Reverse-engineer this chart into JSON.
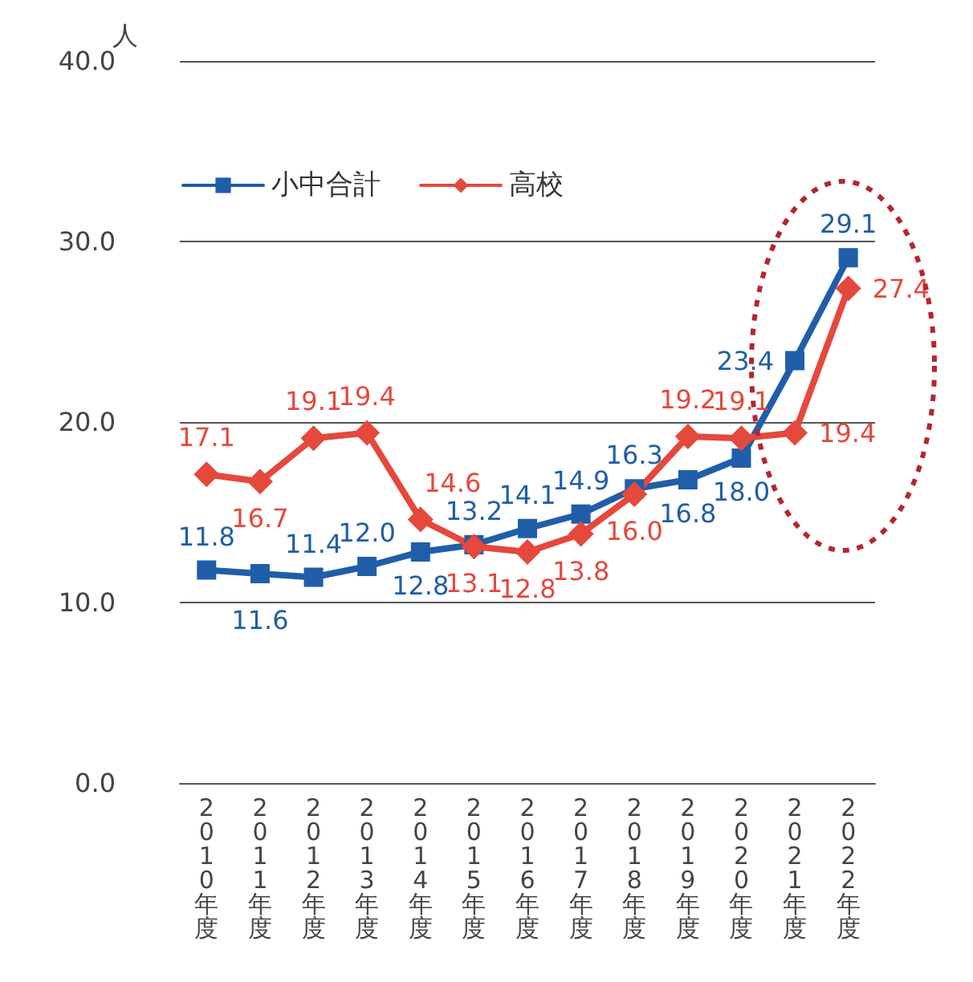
{
  "chart_data": {
    "type": "line",
    "ylabel": "人",
    "categories": [
      "2010年度",
      "2011年度",
      "2012年度",
      "2013年度",
      "2014年度",
      "2015年度",
      "2016年度",
      "2017年度",
      "2018年度",
      "2019年度",
      "2020年度",
      "2021年度",
      "2022年度"
    ],
    "series": [
      {
        "name": "小中合計",
        "color": "#1f5ea8",
        "marker": "square",
        "values": [
          11.8,
          11.6,
          11.4,
          12.0,
          12.8,
          13.2,
          14.1,
          14.9,
          16.3,
          16.8,
          18.0,
          23.4,
          29.1
        ],
        "value_labels": [
          "11.8",
          "11.6",
          "11.4",
          "12.0",
          "12.8",
          "13.2",
          "14.1",
          "14.9",
          "16.3",
          "16.8",
          "18.0",
          "23.4",
          "29.1"
        ]
      },
      {
        "name": "高校",
        "color": "#e5483c",
        "marker": "diamond",
        "values": [
          17.1,
          16.7,
          19.1,
          19.4,
          14.6,
          13.1,
          12.8,
          13.8,
          16.0,
          19.2,
          19.1,
          19.4,
          27.4
        ],
        "value_labels": [
          "17.1",
          "16.7",
          "19.1",
          "19.4",
          "14.6",
          "13.1",
          "12.8",
          "13.8",
          "16.0",
          "19.2",
          "19.1",
          "19.4",
          "27.4"
        ]
      }
    ],
    "ylim": [
      0,
      40
    ],
    "yticks": [
      {
        "value": 0,
        "label": "0.0"
      },
      {
        "value": 10,
        "label": "10.0"
      },
      {
        "value": 20,
        "label": "20.0"
      },
      {
        "value": 30,
        "label": "30.0"
      },
      {
        "value": 40,
        "label": "40.0"
      }
    ],
    "grid": "y",
    "legend": "top left",
    "line_style": "solid"
  }
}
